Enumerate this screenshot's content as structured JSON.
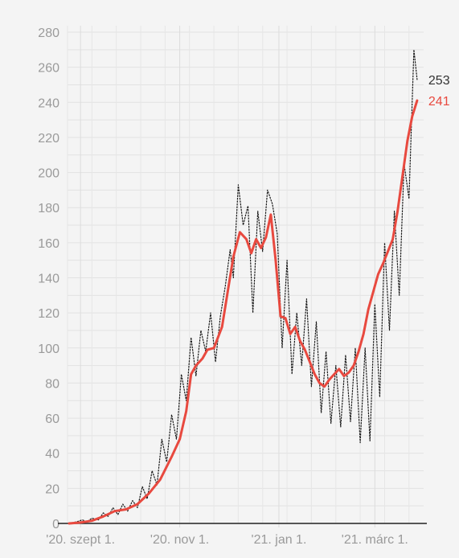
{
  "chart_data": {
    "type": "line",
    "title": "",
    "xlabel": "",
    "ylabel": "",
    "ylim": [
      0,
      280
    ],
    "yticks": [
      0,
      20,
      40,
      60,
      80,
      100,
      120,
      140,
      160,
      180,
      200,
      220,
      240,
      260,
      280
    ],
    "xlim": [
      "2020-08-24",
      "2021-03-31"
    ],
    "xticks": [
      {
        "date": "2020-09-01",
        "label": "'20. szept 1."
      },
      {
        "date": "2020-11-01",
        "label": "'20. nov 1."
      },
      {
        "date": "2021-01-01",
        "label": "'21. jan 1."
      },
      {
        "date": "2021-03-01",
        "label": "'21. márc 1."
      }
    ],
    "grid": true,
    "series": [
      {
        "role": "daily",
        "color": "#1a1a1a",
        "style": "dotted",
        "end_label": "253",
        "points": [
          [
            "2020-08-25",
            0
          ],
          [
            "2020-08-30",
            1
          ],
          [
            "2020-09-02",
            2
          ],
          [
            "2020-09-05",
            1
          ],
          [
            "2020-09-08",
            3
          ],
          [
            "2020-09-12",
            2
          ],
          [
            "2020-09-15",
            6
          ],
          [
            "2020-09-18",
            4
          ],
          [
            "2020-09-21",
            9
          ],
          [
            "2020-09-24",
            5
          ],
          [
            "2020-09-27",
            11
          ],
          [
            "2020-09-30",
            7
          ],
          [
            "2020-10-03",
            13
          ],
          [
            "2020-10-06",
            9
          ],
          [
            "2020-10-09",
            21
          ],
          [
            "2020-10-12",
            14
          ],
          [
            "2020-10-15",
            30
          ],
          [
            "2020-10-18",
            22
          ],
          [
            "2020-10-21",
            48
          ],
          [
            "2020-10-24",
            35
          ],
          [
            "2020-10-27",
            62
          ],
          [
            "2020-10-30",
            48
          ],
          [
            "2020-11-02",
            85
          ],
          [
            "2020-11-05",
            70
          ],
          [
            "2020-11-08",
            106
          ],
          [
            "2020-11-11",
            84
          ],
          [
            "2020-11-14",
            110
          ],
          [
            "2020-11-17",
            98
          ],
          [
            "2020-11-20",
            120
          ],
          [
            "2020-11-23",
            92
          ],
          [
            "2020-11-26",
            118
          ],
          [
            "2020-11-29",
            135
          ],
          [
            "2020-12-02",
            156
          ],
          [
            "2020-12-04",
            140
          ],
          [
            "2020-12-07",
            193
          ],
          [
            "2020-12-10",
            170
          ],
          [
            "2020-12-13",
            181
          ],
          [
            "2020-12-16",
            120
          ],
          [
            "2020-12-19",
            178
          ],
          [
            "2020-12-22",
            155
          ],
          [
            "2020-12-25",
            190
          ],
          [
            "2020-12-28",
            182
          ],
          [
            "2020-12-31",
            165
          ],
          [
            "2021-01-03",
            100
          ],
          [
            "2021-01-06",
            150
          ],
          [
            "2021-01-09",
            85
          ],
          [
            "2021-01-12",
            120
          ],
          [
            "2021-01-15",
            90
          ],
          [
            "2021-01-18",
            128
          ],
          [
            "2021-01-21",
            78
          ],
          [
            "2021-01-24",
            115
          ],
          [
            "2021-01-27",
            63
          ],
          [
            "2021-01-30",
            98
          ],
          [
            "2021-02-02",
            57
          ],
          [
            "2021-02-05",
            90
          ],
          [
            "2021-02-08",
            55
          ],
          [
            "2021-02-11",
            96
          ],
          [
            "2021-02-14",
            58
          ],
          [
            "2021-02-17",
            100
          ],
          [
            "2021-02-20",
            46
          ],
          [
            "2021-02-23",
            100
          ],
          [
            "2021-02-26",
            47
          ],
          [
            "2021-03-01",
            125
          ],
          [
            "2021-03-04",
            72
          ],
          [
            "2021-03-07",
            160
          ],
          [
            "2021-03-10",
            110
          ],
          [
            "2021-03-13",
            178
          ],
          [
            "2021-03-16",
            130
          ],
          [
            "2021-03-19",
            205
          ],
          [
            "2021-03-22",
            185
          ],
          [
            "2021-03-25",
            270
          ],
          [
            "2021-03-27",
            253
          ]
        ]
      },
      {
        "role": "7-day average",
        "color": "#e8493f",
        "style": "solid",
        "end_label": "241",
        "points": [
          [
            "2020-08-25",
            0
          ],
          [
            "2020-09-01",
            0.5
          ],
          [
            "2020-09-08",
            1.5
          ],
          [
            "2020-09-15",
            4
          ],
          [
            "2020-09-22",
            7
          ],
          [
            "2020-09-29",
            8
          ],
          [
            "2020-10-06",
            11
          ],
          [
            "2020-10-13",
            17
          ],
          [
            "2020-10-20",
            25
          ],
          [
            "2020-10-27",
            38
          ],
          [
            "2020-11-01",
            48
          ],
          [
            "2020-11-05",
            64
          ],
          [
            "2020-11-08",
            85
          ],
          [
            "2020-11-11",
            90
          ],
          [
            "2020-11-15",
            94
          ],
          [
            "2020-11-18",
            99
          ],
          [
            "2020-11-22",
            100
          ],
          [
            "2020-11-27",
            112
          ],
          [
            "2020-12-01",
            135
          ],
          [
            "2020-12-04",
            152
          ],
          [
            "2020-12-08",
            166
          ],
          [
            "2020-12-12",
            162
          ],
          [
            "2020-12-15",
            154
          ],
          [
            "2020-12-18",
            162
          ],
          [
            "2020-12-21",
            157
          ],
          [
            "2020-12-24",
            163
          ],
          [
            "2020-12-27",
            176
          ],
          [
            "2020-12-30",
            150
          ],
          [
            "2021-01-02",
            118
          ],
          [
            "2021-01-05",
            117
          ],
          [
            "2021-01-08",
            108
          ],
          [
            "2021-01-11",
            112
          ],
          [
            "2021-01-14",
            104
          ],
          [
            "2021-01-17",
            99
          ],
          [
            "2021-01-20",
            92
          ],
          [
            "2021-01-23",
            85
          ],
          [
            "2021-01-26",
            80
          ],
          [
            "2021-01-29",
            78
          ],
          [
            "2021-02-01",
            82
          ],
          [
            "2021-02-04",
            85
          ],
          [
            "2021-02-07",
            88
          ],
          [
            "2021-02-10",
            84
          ],
          [
            "2021-02-13",
            86
          ],
          [
            "2021-02-16",
            90
          ],
          [
            "2021-02-19",
            98
          ],
          [
            "2021-02-22",
            108
          ],
          [
            "2021-02-25",
            122
          ],
          [
            "2021-02-28",
            132
          ],
          [
            "2021-03-03",
            142
          ],
          [
            "2021-03-06",
            148
          ],
          [
            "2021-03-09",
            155
          ],
          [
            "2021-03-12",
            162
          ],
          [
            "2021-03-15",
            178
          ],
          [
            "2021-03-18",
            198
          ],
          [
            "2021-03-21",
            218
          ],
          [
            "2021-03-24",
            232
          ],
          [
            "2021-03-27",
            241
          ]
        ]
      }
    ]
  }
}
